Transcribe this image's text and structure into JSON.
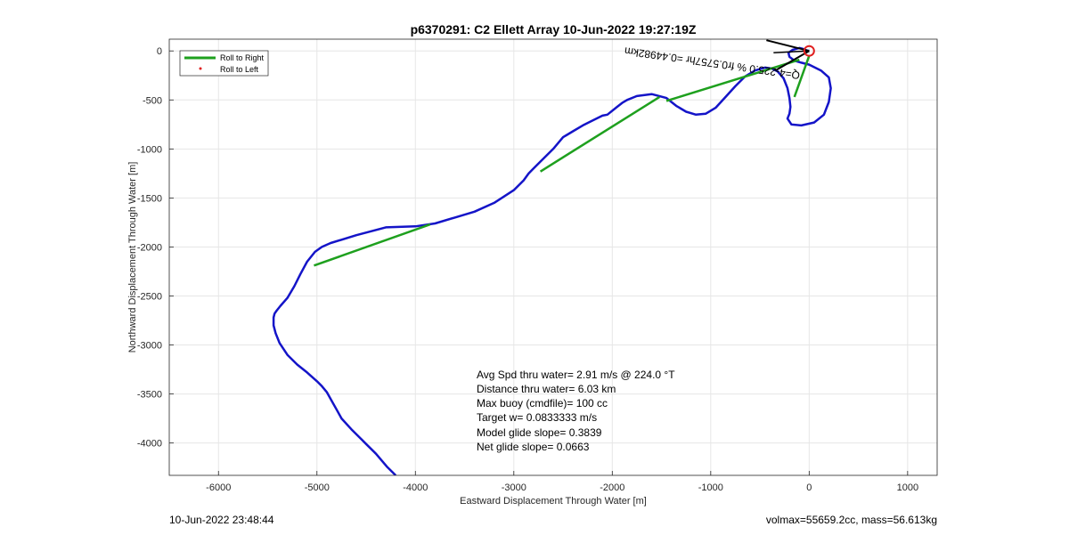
{
  "chart_data": {
    "type": "line",
    "title": "p6370291: C2 Ellett Array 10-Jun-2022 19:27:19Z",
    "xlabel": "Eastward Displacement Through Water [m]",
    "ylabel": "Northward Displacement Through Water [m]",
    "xlim": [
      -6500,
      1300
    ],
    "ylim": [
      -4330,
      120
    ],
    "xticks": [
      -6000,
      -5000,
      -4000,
      -3000,
      -2000,
      -1000,
      0,
      1000
    ],
    "yticks": [
      0,
      -500,
      -1000,
      -1500,
      -2000,
      -2500,
      -3000,
      -3500,
      -4000
    ],
    "grid": true,
    "legend_position": "top-left",
    "legend": [
      {
        "label": "Roll to Right",
        "color": "#1ea01e",
        "style": "line"
      },
      {
        "label": "Roll to Left",
        "color": "#e02020",
        "style": "dot"
      }
    ],
    "track_color": "#1414c8",
    "track": {
      "x": [
        -4200,
        -4290,
        -4400,
        -4500,
        -4550,
        -4650,
        -4750,
        -4800,
        -4850,
        -4900,
        -4950,
        -5000,
        -5100,
        -5200,
        -5300,
        -5380,
        -5420,
        -5440,
        -5440,
        -5430,
        -5410,
        -5370,
        -5300,
        -5230,
        -5170,
        -5100,
        -5020,
        -4950,
        -4860,
        -4600,
        -4300,
        -4000,
        -3800,
        -3600,
        -3400,
        -3200,
        -3000,
        -2900,
        -2850,
        -2800,
        -2750,
        -2600,
        -2500,
        -2400,
        -2300,
        -2200,
        -2100,
        -2050,
        -1950,
        -1900,
        -1850,
        -1750,
        -1600,
        -1450,
        -1350,
        -1250,
        -1150,
        -1050,
        -950,
        -850,
        -750,
        -650,
        -550,
        -450,
        -380,
        -320,
        -260,
        -220,
        -200,
        -190,
        -200,
        -220,
        -180,
        -80,
        50,
        150,
        200,
        220,
        200,
        120,
        0,
        -80,
        -150,
        -200,
        -210,
        -170,
        -100,
        -60,
        -40,
        -20,
        0
      ],
      "y": [
        -4330,
        -4240,
        -4110,
        -4010,
        -3960,
        -3860,
        -3750,
        -3660,
        -3570,
        -3480,
        -3420,
        -3370,
        -3280,
        -3200,
        -3100,
        -2980,
        -2880,
        -2800,
        -2720,
        -2680,
        -2650,
        -2600,
        -2520,
        -2400,
        -2280,
        -2150,
        -2050,
        -2000,
        -1960,
        -1880,
        -1800,
        -1790,
        -1760,
        -1700,
        -1640,
        -1550,
        -1420,
        -1320,
        -1250,
        -1200,
        -1150,
        -1000,
        -880,
        -820,
        -760,
        -710,
        -660,
        -650,
        -570,
        -530,
        -500,
        -460,
        -440,
        -480,
        -560,
        -620,
        -650,
        -640,
        -580,
        -470,
        -360,
        -260,
        -200,
        -170,
        -180,
        -210,
        -280,
        -380,
        -480,
        -570,
        -640,
        -690,
        -750,
        -760,
        -730,
        -650,
        -520,
        -380,
        -270,
        -200,
        -140,
        -120,
        -100,
        -60,
        -20,
        10,
        30,
        20,
        10,
        5,
        0
      ]
    },
    "roll_segments": [
      {
        "x": [
          -5030,
          -3850
        ],
        "y": [
          -2190,
          -1770
        ]
      },
      {
        "x": [
          -2730,
          -1520
        ],
        "y": [
          -1230,
          -470
        ]
      },
      {
        "x": [
          -1450,
          -100
        ],
        "y": [
          -510,
          -90
        ]
      },
      {
        "x": [
          -150,
          0
        ],
        "y": [
          -470,
          -50
        ]
      }
    ],
    "rotated_label": "Q=4-225.0 % fr0.5757hr =0.44982km",
    "annotations": [
      "Avg Spd thru water=  2.91 m/s @ 224.0 °T",
      "Distance thru water=  6.03 km",
      "Max buoy (cmdfile)= 100 cc",
      "Target w= 0.0833333 m/s",
      "Model glide slope= 0.3839",
      "Net glide slope= 0.0663"
    ]
  },
  "footer": {
    "left": "10-Jun-2022 23:48:44",
    "right": "volmax=55659.2cc, mass=56.613kg"
  }
}
